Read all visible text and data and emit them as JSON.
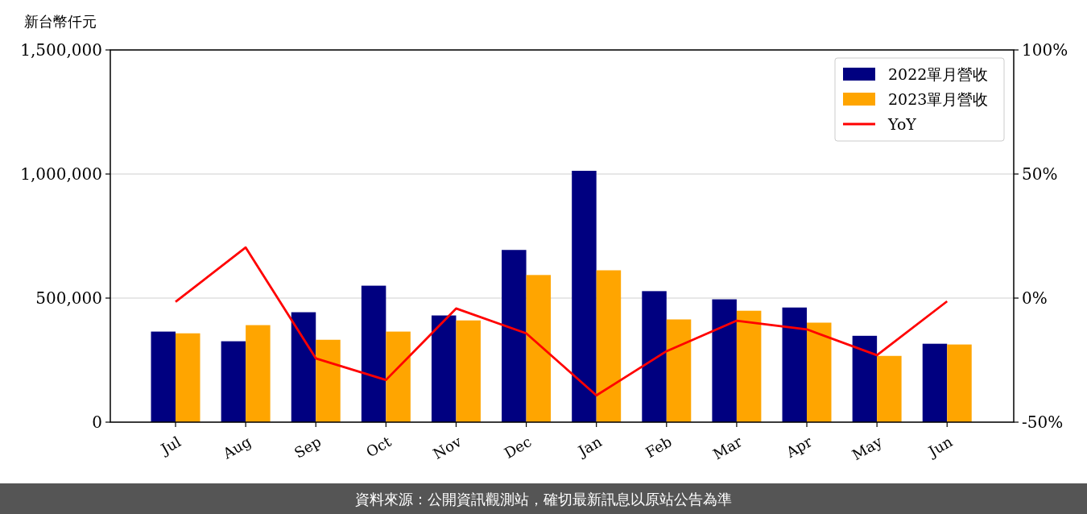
{
  "chart_data": {
    "type": "bar",
    "ylabel": "新台幣仟元",
    "categories": [
      "Jul",
      "Aug",
      "Sep",
      "Oct",
      "Nov",
      "Dec",
      "Jan",
      "Feb",
      "Mar",
      "Apr",
      "May",
      "Jun"
    ],
    "series": [
      {
        "name": "2022單月營收",
        "color": "#000080",
        "values": [
          365000,
          326000,
          443000,
          550000,
          430000,
          694000,
          1013000,
          528000,
          495000,
          462000,
          348000,
          316000
        ]
      },
      {
        "name": "2023單月營收",
        "color": "#ffa500",
        "values": [
          358000,
          391000,
          332000,
          365000,
          410000,
          593000,
          612000,
          414000,
          449000,
          401000,
          267000,
          313000
        ]
      },
      {
        "name": "YoY",
        "type": "line",
        "axis": "y2",
        "color": "#ff0000",
        "values": [
          -1.5,
          20.4,
          -24.3,
          -33,
          -4.2,
          -14.2,
          -39.2,
          -21.4,
          -9.1,
          -12.6,
          -23,
          -1.3
        ]
      }
    ],
    "ylim": [
      0,
      1500000
    ],
    "yticks": [
      {
        "value": 0,
        "label": "0"
      },
      {
        "value": 500000,
        "label": "500,000"
      },
      {
        "value": 1000000,
        "label": "1,000,000"
      },
      {
        "value": 1500000,
        "label": "1,500,000"
      }
    ],
    "y2lim": [
      -50,
      100
    ],
    "y2ticks": [
      {
        "value": -50,
        "label": "-50%"
      },
      {
        "value": 0,
        "label": "0%"
      },
      {
        "value": 50,
        "label": "50%"
      },
      {
        "value": 100,
        "label": "100%"
      }
    ],
    "grid": "y",
    "legend": "top right",
    "annotations": [
      "資料來源：公開資訊觀測站，確切最新訊息以原站公告為準"
    ]
  }
}
